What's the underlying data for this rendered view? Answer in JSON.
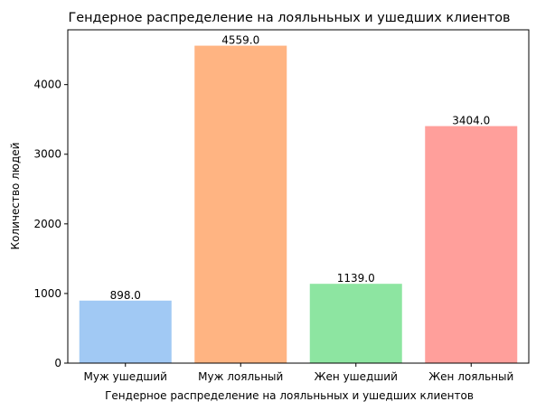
{
  "chart_data": {
    "type": "bar",
    "title": "Гендерное распределение на лояльньных и ушедших клиентов",
    "xlabel": "Гендерное распределение на лояльньных и ушедших клиентов",
    "ylabel": "Количество людей",
    "categories": [
      "Муж ушедший",
      "Муж лояльный",
      "Жен ушедший",
      "Жен лояльный"
    ],
    "values": [
      898,
      4559,
      1139,
      3404
    ],
    "value_labels": [
      "898.0",
      "4559.0",
      "1139.0",
      "3404.0"
    ],
    "colors": [
      "#a1c9f4",
      "#ffb482",
      "#8de5a1",
      "#ff9f9b"
    ],
    "ylim": [
      0,
      4787
    ],
    "yticks": [
      0,
      1000,
      2000,
      3000,
      4000
    ],
    "grid": false,
    "legend": "none"
  }
}
